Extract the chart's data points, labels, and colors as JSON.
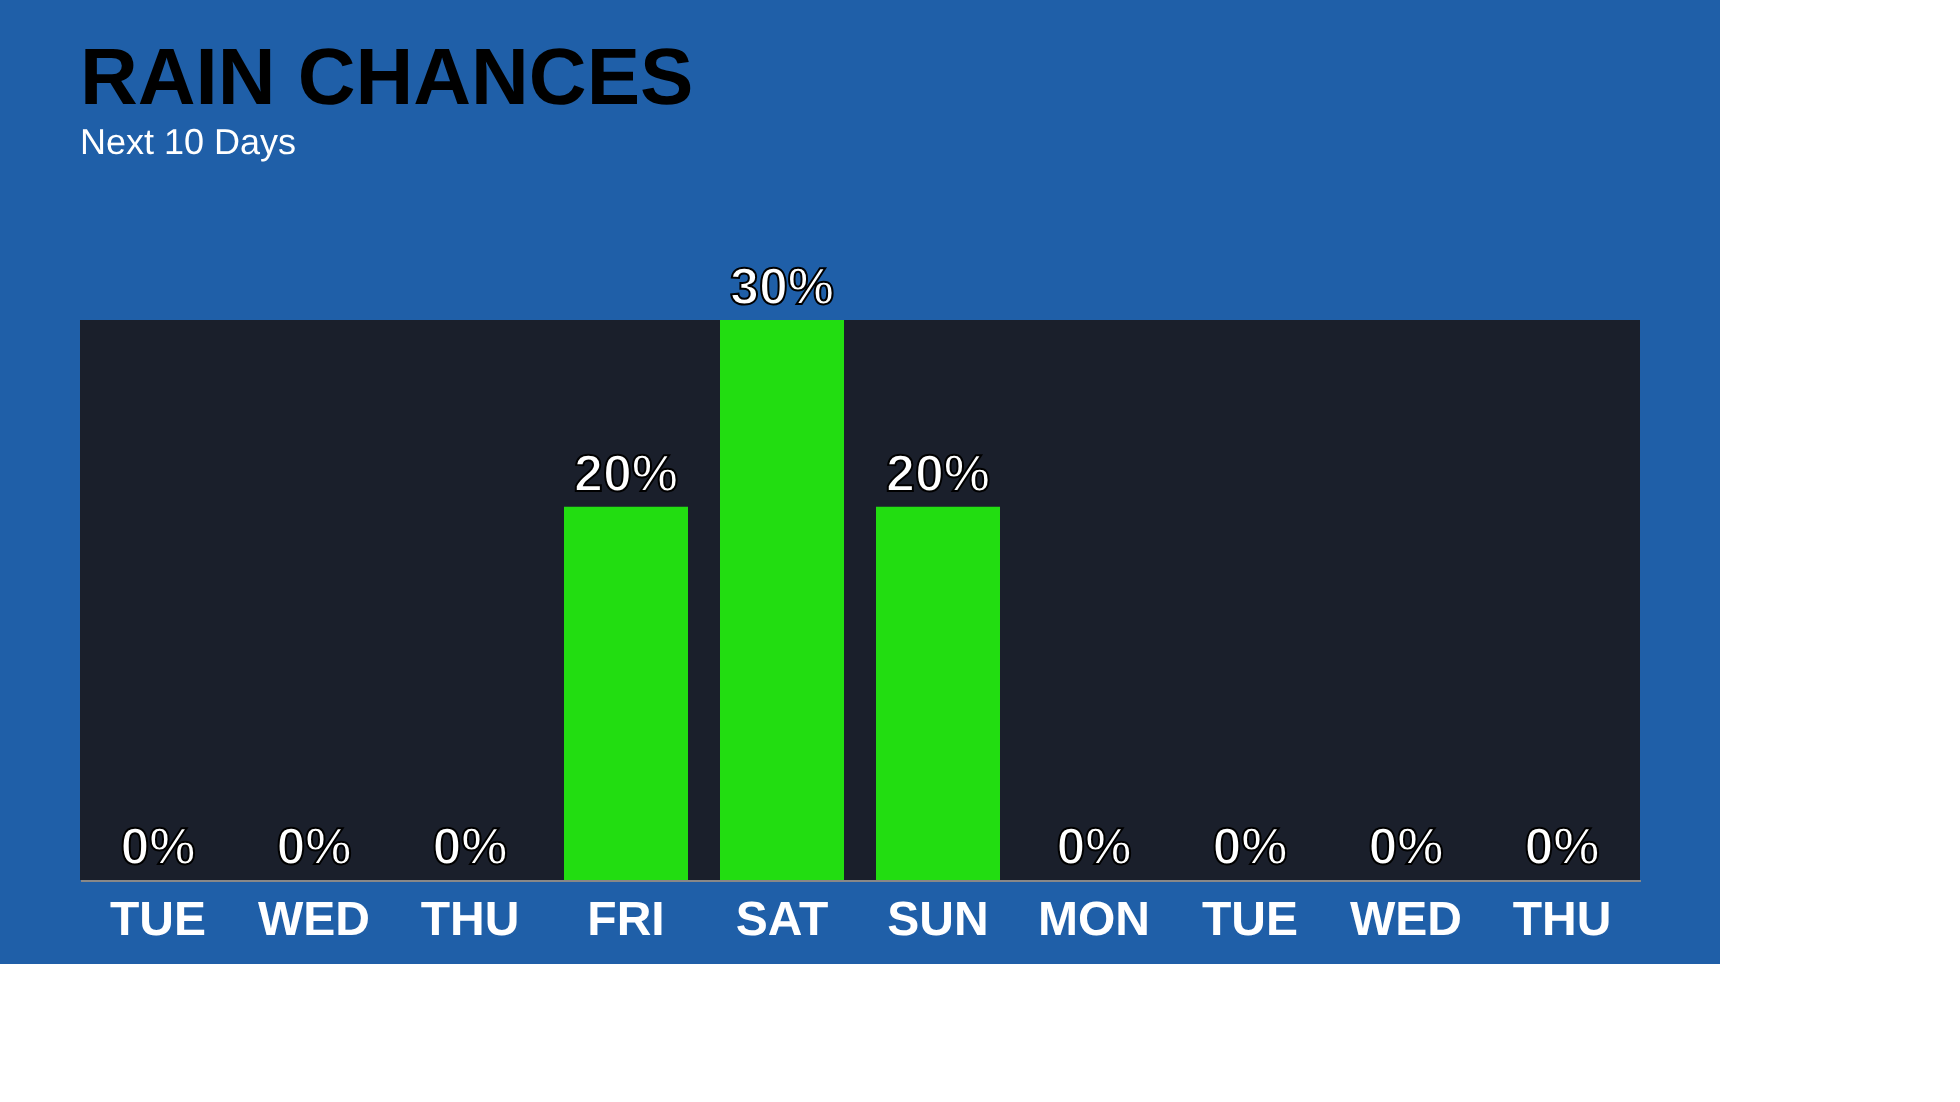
{
  "chart_data": {
    "type": "bar",
    "title": "RAIN CHANCES",
    "subtitle": "Next 10 Days",
    "categories": [
      "TUE",
      "WED",
      "THU",
      "FRI",
      "SAT",
      "SUN",
      "MON",
      "TUE",
      "WED",
      "THU"
    ],
    "values": [
      0,
      0,
      0,
      20,
      30,
      20,
      0,
      0,
      0,
      0
    ],
    "value_labels": [
      "0%",
      "0%",
      "0%",
      "20%",
      "30%",
      "20%",
      "0%",
      "0%",
      "0%",
      "0%"
    ],
    "color": "#22dd11",
    "grid": false
  }
}
